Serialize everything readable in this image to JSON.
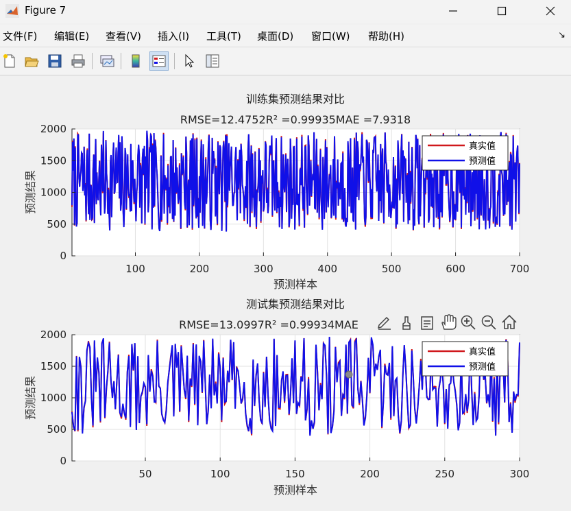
{
  "window": {
    "title": "Figure 7",
    "minimize_icon": "minimize-icon",
    "maximize_icon": "maximize-icon",
    "close_icon": "close-icon"
  },
  "menu": {
    "items": [
      "文件(F)",
      "编辑(E)",
      "查看(V)",
      "插入(I)",
      "工具(T)",
      "桌面(D)",
      "窗口(W)",
      "帮助(H)"
    ],
    "overflow_glyph": "↘"
  },
  "toolbar": {
    "icons": [
      "new-figure-icon",
      "open-file-icon",
      "save-icon",
      "print-icon",
      "link-plot-icon",
      "colorbar-icon",
      "legend-icon",
      "pointer-icon",
      "property-inspector-icon"
    ],
    "active": "legend-icon"
  },
  "axes_toolbar": {
    "icons": [
      "brush-edit-icon",
      "data-brush-icon",
      "data-tips-icon",
      "pan-hand-icon",
      "zoom-in-icon",
      "zoom-out-icon",
      "home-icon"
    ]
  },
  "colors": {
    "true_series": "#d0181c",
    "pred_series": "#1010e8",
    "axes_bg": "#ffffff",
    "figure_bg": "#f0f0f0"
  },
  "chart_data": [
    {
      "type": "line",
      "title": "训练集预测结果对比",
      "subtitle": "RMSE=12.4752R² =0.99935MAE =7.9318",
      "xlabel": "预测样本",
      "ylabel": "预测结果",
      "xlim": [
        1,
        700
      ],
      "ylim": [
        0,
        2000
      ],
      "xticks": [
        100,
        200,
        300,
        400,
        500,
        600,
        700
      ],
      "yticks": [
        0,
        500,
        1000,
        1500,
        2000
      ],
      "grid": true,
      "legend_position": "top-right",
      "series": [
        {
          "name": "真实值",
          "color": "#d0181c",
          "linewidth": 2
        },
        {
          "name": "预测值",
          "color": "#1010e8",
          "linewidth": 2
        }
      ],
      "sample_count": 700
    },
    {
      "type": "line",
      "title": "测试集预测结果对比",
      "subtitle": "RMSE=13.0997R² =0.99934MAE",
      "xlabel": "预测样本",
      "ylabel": "预测结果",
      "xlim": [
        1,
        300
      ],
      "ylim": [
        0,
        2000
      ],
      "xticks": [
        50,
        100,
        150,
        200,
        250,
        300
      ],
      "yticks": [
        0,
        500,
        1000,
        1500,
        2000
      ],
      "grid": true,
      "legend_position": "top-right",
      "series": [
        {
          "name": "真实值",
          "color": "#d0181c",
          "linewidth": 2
        },
        {
          "name": "预测值",
          "color": "#1010e8",
          "linewidth": 2
        }
      ],
      "sample_count": 300
    }
  ]
}
